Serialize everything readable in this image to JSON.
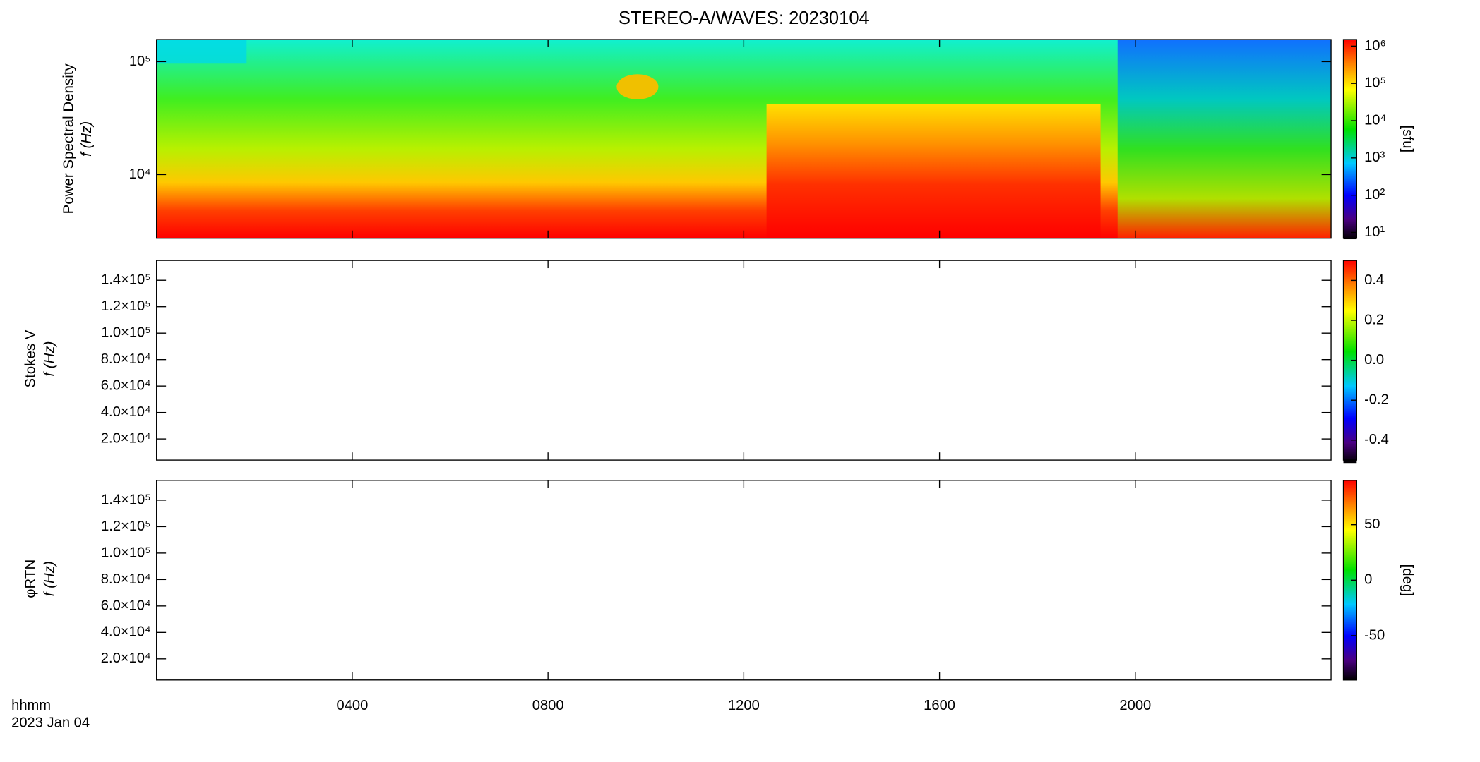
{
  "chart_data": [
    {
      "type": "spectrogram",
      "title": "STEREO-A/WAVES: 20230104",
      "ylabel": [
        "Power Spectral Density",
        "f (Hz)"
      ],
      "yscale": "log",
      "ylim": [
        2730,
        157000
      ],
      "yticks": [
        {
          "value": 10000,
          "label": "10⁴"
        },
        {
          "value": 100000,
          "label": "10⁵"
        }
      ],
      "cscale": "log",
      "clim": [
        7,
        1500000
      ],
      "cticks": [
        {
          "value": 10,
          "label": "10¹"
        },
        {
          "value": 100,
          "label": "10²"
        },
        {
          "value": 1000,
          "label": "10³"
        },
        {
          "value": 10000,
          "label": "10⁴"
        },
        {
          "value": 100000,
          "label": "10⁵"
        },
        {
          "value": 1000000,
          "label": "10⁶"
        }
      ],
      "clabel": "[sfu]"
    },
    {
      "type": "spectrogram",
      "ylabel": [
        "Stokes V",
        "f (Hz)"
      ],
      "yscale": "linear",
      "ylim": [
        4000,
        155000
      ],
      "yticks": [
        {
          "value": 20000,
          "label": "2.0×10⁴"
        },
        {
          "value": 40000,
          "label": "4.0×10⁴"
        },
        {
          "value": 60000,
          "label": "6.0×10⁴"
        },
        {
          "value": 80000,
          "label": "8.0×10⁴"
        },
        {
          "value": 100000,
          "label": "1.0×10⁵"
        },
        {
          "value": 120000,
          "label": "1.2×10⁵"
        },
        {
          "value": 140000,
          "label": "1.4×10⁵"
        }
      ],
      "cscale": "linear",
      "clim": [
        -0.5,
        0.5
      ],
      "cticks": [
        -0.4,
        -0.2,
        {
          "value": 0,
          "label": "0.0"
        },
        0.2,
        0.4
      ]
    },
    {
      "type": "spectrogram",
      "ylabel": [
        "φRTN",
        "f (Hz)"
      ],
      "yscale": "linear",
      "ylim": [
        4000,
        155000
      ],
      "yticks": [
        {
          "value": 20000,
          "label": "2.0×10⁴"
        },
        {
          "value": 40000,
          "label": "4.0×10⁴"
        },
        {
          "value": 60000,
          "label": "6.0×10⁴"
        },
        {
          "value": 80000,
          "label": "8.0×10⁴"
        },
        {
          "value": 100000,
          "label": "1.0×10⁵"
        },
        {
          "value": 120000,
          "label": "1.2×10⁵"
        },
        {
          "value": 140000,
          "label": "1.4×10⁵"
        }
      ],
      "cscale": "linear",
      "clim": [
        -90,
        90
      ],
      "cticks": [
        -50,
        0,
        50
      ],
      "clabel": "[deg]",
      "x_label": [
        "hhmm",
        "2023 Jan 04"
      ],
      "xlim": [
        0,
        24
      ],
      "xticks": [
        {
          "value": 4,
          "label": "0400"
        },
        {
          "value": 8,
          "label": "0800"
        },
        {
          "value": 12,
          "label": "1200"
        },
        {
          "value": 16,
          "label": "1600"
        },
        {
          "value": 20,
          "label": "2000"
        }
      ]
    }
  ]
}
